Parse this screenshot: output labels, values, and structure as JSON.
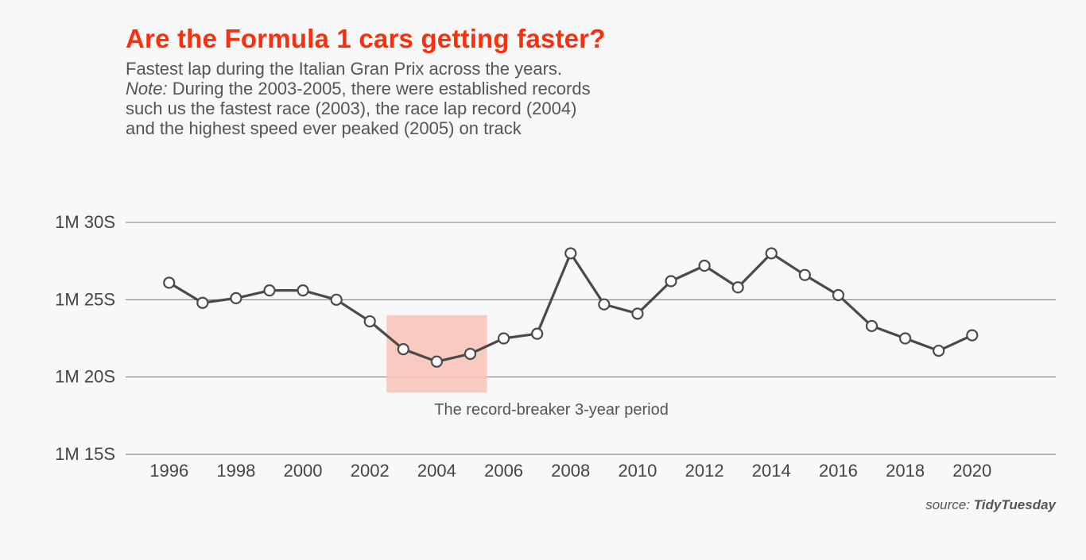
{
  "chart_data": {
    "type": "line",
    "title": "Are the Formula 1 cars getting faster?",
    "subtitle": [
      "Fastest lap during the Italian Gran Prix across the years.",
      "During the 2003-2005, there were established records",
      "such us the fastest race (2003), the race lap record (2004)",
      "and the highest speed ever peaked (2005) on track"
    ],
    "note_label": "Note:",
    "xlabel": "",
    "ylabel": "",
    "x": [
      1996,
      1997,
      1998,
      1999,
      2000,
      2001,
      2002,
      2003,
      2004,
      2005,
      2006,
      2007,
      2008,
      2009,
      2010,
      2011,
      2012,
      2013,
      2014,
      2015,
      2016,
      2017,
      2018,
      2019,
      2020
    ],
    "y": [
      86.1,
      84.8,
      85.1,
      85.6,
      85.6,
      85.0,
      83.6,
      81.8,
      81.0,
      81.5,
      82.5,
      82.8,
      88.0,
      84.7,
      84.1,
      86.2,
      87.2,
      85.8,
      88.0,
      86.6,
      85.3,
      83.3,
      82.5,
      81.7,
      82.7
    ],
    "y_unit": "seconds",
    "ylim": [
      75,
      90
    ],
    "xlim": [
      1994.7,
      2022.5
    ],
    "y_ticks": [
      75,
      80,
      85,
      90
    ],
    "y_tick_labels": [
      "1M 15S",
      "1M 20S",
      "1M 25S",
      "1M 30S"
    ],
    "x_ticks": [
      1996,
      1998,
      2000,
      2002,
      2004,
      2006,
      2008,
      2010,
      2012,
      2014,
      2016,
      2018,
      2020
    ],
    "x_tick_labels": [
      "1996",
      "1998",
      "2000",
      "2002",
      "2004",
      "2006",
      "2008",
      "2010",
      "2012",
      "2014",
      "2016",
      "2018",
      "2020"
    ],
    "grid": "horizontal",
    "highlight": {
      "x_range": [
        2002.5,
        2005.5
      ],
      "y_range": [
        79,
        84
      ],
      "label": "The record-breaker 3-year period",
      "color": "#f8c4b8"
    },
    "colors": {
      "title": "#ff2d0a",
      "line": "#4a4a4a",
      "marker_fill": "#ffffff",
      "grid": "#777777"
    }
  },
  "source": {
    "prefix": "source:",
    "name": "TidyTuesday"
  }
}
